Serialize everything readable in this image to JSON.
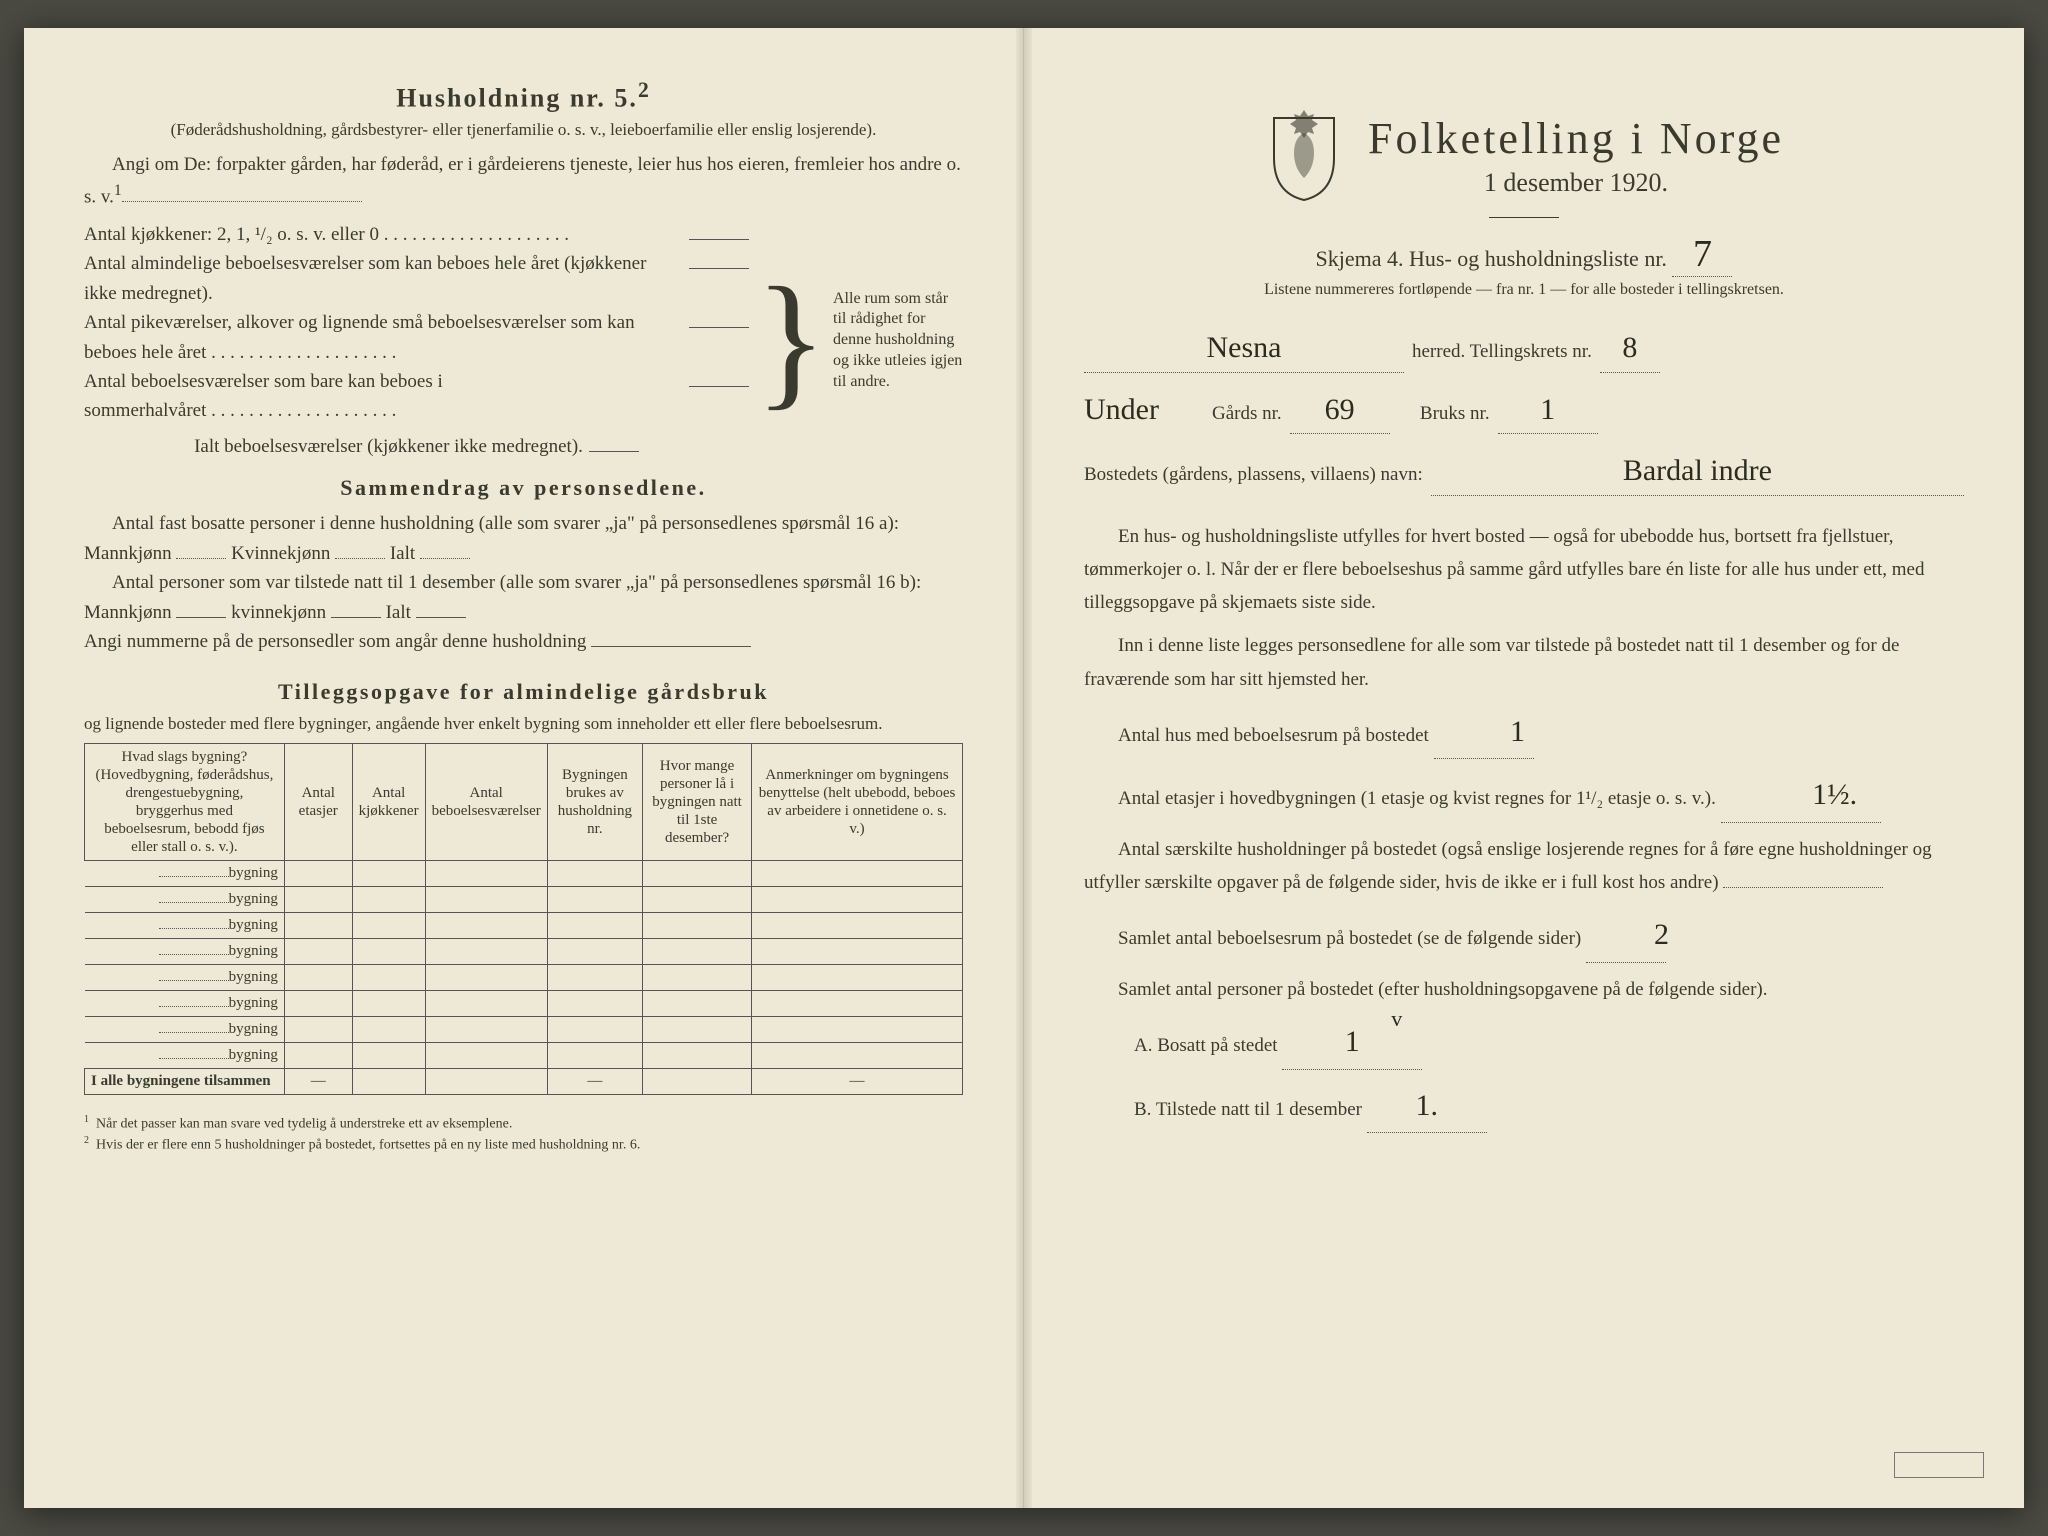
{
  "colors": {
    "paper": "#ede9d6",
    "ink": "#3a3a2e",
    "background": "#4a4a42",
    "rule": "#555555",
    "handwriting": "#2b2b20"
  },
  "left": {
    "title": "Husholdning nr. 5.",
    "title_sup": "2",
    "sub1": "(Føderådshusholdning, gårdsbestyrer- eller tjenerfamilie o. s. v., leieboerfamilie eller enslig losjerende).",
    "angi": "Angi om De: forpakter gården, har føderåd, er i gårdeierens tjeneste, leier hus hos eieren, fremleier hos andre o. s. v.",
    "angi_sup": "1",
    "kitchen_label": "Antal kjøkkener: 2, 1, ¹/₂ o. s. v. eller 0",
    "rooms1": "Antal almindelige beboelsesværelser som kan beboes hele året (kjøkkener ikke medregnet).",
    "rooms2": "Antal pikeværelser, alkover og lignende små beboelsesværelser som kan beboes hele året",
    "rooms3": "Antal beboelsesværelser som bare kan beboes i sommerhalvåret",
    "rooms_total": "Ialt beboelsesværelser (kjøkkener ikke medregnet).",
    "brace_text": "Alle rum som står til rådighet for denne husholdning og ikke utleies igjen til andre.",
    "sammendrag_title": "Sammendrag av personsedlene.",
    "samm_line1a": "Antal fast bosatte personer i denne husholdning (alle som svarer „ja\" på personsedlenes spørsmål 16 a): Mannkjønn",
    "samm_kvin": "Kvinnekjønn",
    "samm_ialt": "Ialt",
    "samm_line2a": "Antal personer som var tilstede natt til 1 desember (alle som svarer „ja\" på personsedlenes spørsmål 16 b): Mannkjønn",
    "samm_kvin2": "kvinnekjønn",
    "samm_angi": "Angi nummerne på de personsedler som angår denne husholdning",
    "tillegg_title": "Tilleggsopgave for almindelige gårdsbruk",
    "tillegg_sub": "og lignende bosteder med flere bygninger, angående hver enkelt bygning som inneholder ett eller flere beboelsesrum.",
    "table": {
      "columns": [
        "Hvad slags bygning?\n(Hovedbygning, føderådshus, drengestuebygning, bryggerhus med beboelsesrum, bebodd fjøs eller stall o. s. v.).",
        "Antal etasjer",
        "Antal kjøkkener",
        "Antal beboelsesværelser",
        "Bygningen brukes av husholdning nr.",
        "Hvor mange personer lå i bygningen natt til 1ste desember?",
        "Anmerkninger om bygningens benyttelse (helt ubebodd, beboes av arbeidere i onnetidene o. s. v.)"
      ],
      "row_suffix": "bygning",
      "row_count": 8,
      "sum_label": "I alle bygningene tilsammen",
      "col_widths": [
        "24%",
        "8%",
        "8%",
        "10%",
        "11%",
        "13%",
        "26%"
      ]
    },
    "footnote1": "Når det passer kan man svare ved tydelig å understreke ett av eksemplene.",
    "footnote2": "Hvis der er flere enn 5 husholdninger på bostedet, fortsettes på en ny liste med husholdning nr. 6."
  },
  "right": {
    "title": "Folketelling i Norge",
    "date": "1 desember 1920.",
    "skjema": "Skjema 4.  Hus- og husholdningsliste nr.",
    "liste_nr_hand": "7",
    "listene": "Listene nummereres fortløpende — fra nr. 1 — for alle bosteder i tellingskretsen.",
    "herred_hand": "Nesna",
    "herred_suffix": "herred.   Tellingskrets nr.",
    "krets_hand": "8",
    "under_hand": "Under",
    "gards_label": "Gårds nr.",
    "gards_hand": "69",
    "bruks_label": "Bruks nr.",
    "bruks_hand": "1",
    "bosted_label": "Bostedets (gårdens, plassens, villaens) navn:",
    "bosted_hand": "Bardal indre",
    "para1": "En hus- og husholdningsliste utfylles for hvert bosted — også for ubebodde hus, bortsett fra fjellstuer, tømmerkojer o. l.  Når der er flere beboelseshus på samme gård utfylles bare én liste for alle hus under ett, med tilleggsopgave på skjemaets siste side.",
    "para2": "Inn i denne liste legges personsedlene for alle som var tilstede på bostedet natt til 1 desember og for de fraværende som har sitt hjemsted her.",
    "antal_hus_label": "Antal hus med beboelsesrum på bostedet",
    "antal_hus_hand": "1",
    "etasjer_label_a": "Antal etasjer i hovedbygningen (1 etasje og kvist regnes for 1¹/₂ etasje o. s. v.).",
    "etasjer_hand": "1½.",
    "saerskilte": "Antal særskilte husholdninger på bostedet (også enslige losjerende regnes for å føre egne husholdninger og utfyller særskilte opgaver på de følgende sider, hvis de ikke er i full kost hos andre)",
    "samlet_rum": "Samlet antal beboelsesrum på bostedet (se de følgende sider)",
    "samlet_rum_hand": "2",
    "samlet_pers": "Samlet antal personer på bostedet (efter husholdningsopgavene på de følgende sider).",
    "bosatt_label": "A.  Bosatt på stedet",
    "bosatt_hand": "1",
    "bosatt_mark": "v",
    "tilstede_label": "B.  Tilstede natt til 1 desember",
    "tilstede_hand": "1."
  }
}
